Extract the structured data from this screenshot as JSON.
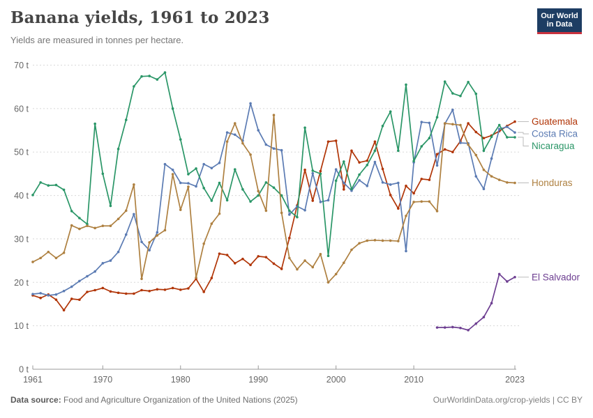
{
  "header": {
    "title": "Banana yields, 1961 to 2023",
    "subtitle": "Yields are measured in tonnes per hectare.",
    "logo": {
      "line1": "Our World",
      "line2": "in Data",
      "bg_color": "#1d3d63",
      "accent_color": "#c9323e"
    }
  },
  "footer": {
    "source_label": "Data source:",
    "source_text": " Food and Agriculture Organization of the United Nations (2025)",
    "credit": "OurWorldinData.org/crop-yields | CC BY"
  },
  "chart_data": {
    "type": "line",
    "title": "Banana yields, 1961 to 2023",
    "ylabel": "tonnes per hectare",
    "unit": "t",
    "grid": "dashed-horizontal",
    "legend_position": "right-end-labels",
    "x_axis": {
      "min": 1961,
      "max": 2023,
      "ticks": [
        1961,
        1970,
        1980,
        1990,
        2000,
        2010,
        2023
      ]
    },
    "y_axis": {
      "min": 0,
      "max": 70,
      "tick_values": [
        0,
        10,
        20,
        30,
        40,
        50,
        60,
        70
      ],
      "tick_labels": [
        "0 t",
        "10 t",
        "20 t",
        "30 t",
        "40 t",
        "50 t",
        "60 t",
        "70 t"
      ]
    },
    "series": [
      {
        "name": "Guatemala",
        "color": "#B13507",
        "start_year": 1961,
        "values": [
          17.0,
          16.4,
          17.2,
          16.0,
          13.6,
          16.2,
          16.0,
          17.8,
          18.2,
          18.7,
          17.9,
          17.6,
          17.4,
          17.4,
          18.2,
          18.0,
          18.4,
          18.3,
          18.7,
          18.3,
          18.6,
          20.8,
          17.8,
          21.0,
          26.6,
          26.3,
          24.4,
          25.4,
          24.0,
          26.0,
          25.8,
          24.3,
          23.1,
          30.2,
          37.7,
          45.9,
          38.8,
          45.6,
          52.4,
          52.6,
          41.4,
          50.3,
          47.6,
          48.0,
          52.4,
          46.1,
          40.1,
          37.0,
          42.2,
          40.5,
          43.8,
          43.6,
          49.5,
          50.6,
          50.0,
          52.5,
          56.6,
          54.6,
          53.2,
          53.8,
          54.8,
          56.0,
          57.0
        ]
      },
      {
        "name": "Costa Rica",
        "color": "#5B7BB3",
        "start_year": 1961,
        "values": [
          17.3,
          17.5,
          17.0,
          17.2,
          18.0,
          19.0,
          20.3,
          21.4,
          22.5,
          24.4,
          25.0,
          27.0,
          31.0,
          35.7,
          29.3,
          27.4,
          31.5,
          47.2,
          45.9,
          42.9,
          42.8,
          42.1,
          47.2,
          46.3,
          47.5,
          54.5,
          54.0,
          52.6,
          61.2,
          55.0,
          51.7,
          50.8,
          50.4,
          35.6,
          37.5,
          36.6,
          45.1,
          38.5,
          38.9,
          46.0,
          42.9,
          41.1,
          43.5,
          42.2,
          47.7,
          43.0,
          42.5,
          42.9,
          27.2,
          47.6,
          56.9,
          56.7,
          46.9,
          56.5,
          59.7,
          52.1,
          52.0,
          44.4,
          41.5,
          48.5,
          55.3,
          55.8,
          54.5
        ]
      },
      {
        "name": "Nicaragua",
        "color": "#2A9667",
        "start_year": 1961,
        "values": [
          40.1,
          43.0,
          42.3,
          42.4,
          41.3,
          36.4,
          34.8,
          33.4,
          56.5,
          45.0,
          37.6,
          50.7,
          57.4,
          65.1,
          67.4,
          67.5,
          66.7,
          68.3,
          60.0,
          52.9,
          44.9,
          46.2,
          41.7,
          38.8,
          42.9,
          38.9,
          46.0,
          41.4,
          38.6,
          40.0,
          43.0,
          41.8,
          40.0,
          36.5,
          35.0,
          55.6,
          45.7,
          45.0,
          26.1,
          43.4,
          47.8,
          41.5,
          44.8,
          47.0,
          50.3,
          56.0,
          59.3,
          50.3,
          65.5,
          47.9,
          51.3,
          53.2,
          58.0,
          66.2,
          63.5,
          62.9,
          66.1,
          63.4,
          50.3,
          53.5,
          56.2,
          53.4,
          53.4
        ]
      },
      {
        "name": "Honduras",
        "color": "#AE8040",
        "start_year": 1961,
        "values": [
          24.7,
          25.6,
          27.0,
          25.6,
          26.8,
          33.1,
          32.3,
          33.0,
          32.5,
          33.0,
          33.0,
          34.6,
          36.5,
          42.5,
          20.8,
          29.2,
          30.8,
          32.0,
          44.9,
          36.7,
          42.0,
          21.1,
          28.9,
          33.5,
          35.8,
          52.4,
          56.6,
          52.0,
          49.4,
          41.0,
          36.5,
          58.5,
          36.0,
          25.6,
          23.0,
          25.0,
          23.5,
          26.5,
          20.0,
          21.9,
          24.5,
          27.5,
          29.0,
          29.6,
          29.7,
          29.6,
          29.6,
          29.5,
          35.3,
          38.5,
          38.6,
          38.6,
          36.4,
          56.6,
          56.4,
          56.2,
          51.7,
          49.3,
          45.9,
          44.4,
          43.6,
          43.0,
          42.9
        ]
      },
      {
        "name": "El Salvador",
        "color": "#6D3E91",
        "start_year": 2013,
        "values": [
          9.6,
          9.6,
          9.7,
          9.5,
          9.0,
          10.5,
          12.0,
          15.2,
          21.9,
          20.2,
          21.2
        ]
      }
    ]
  }
}
